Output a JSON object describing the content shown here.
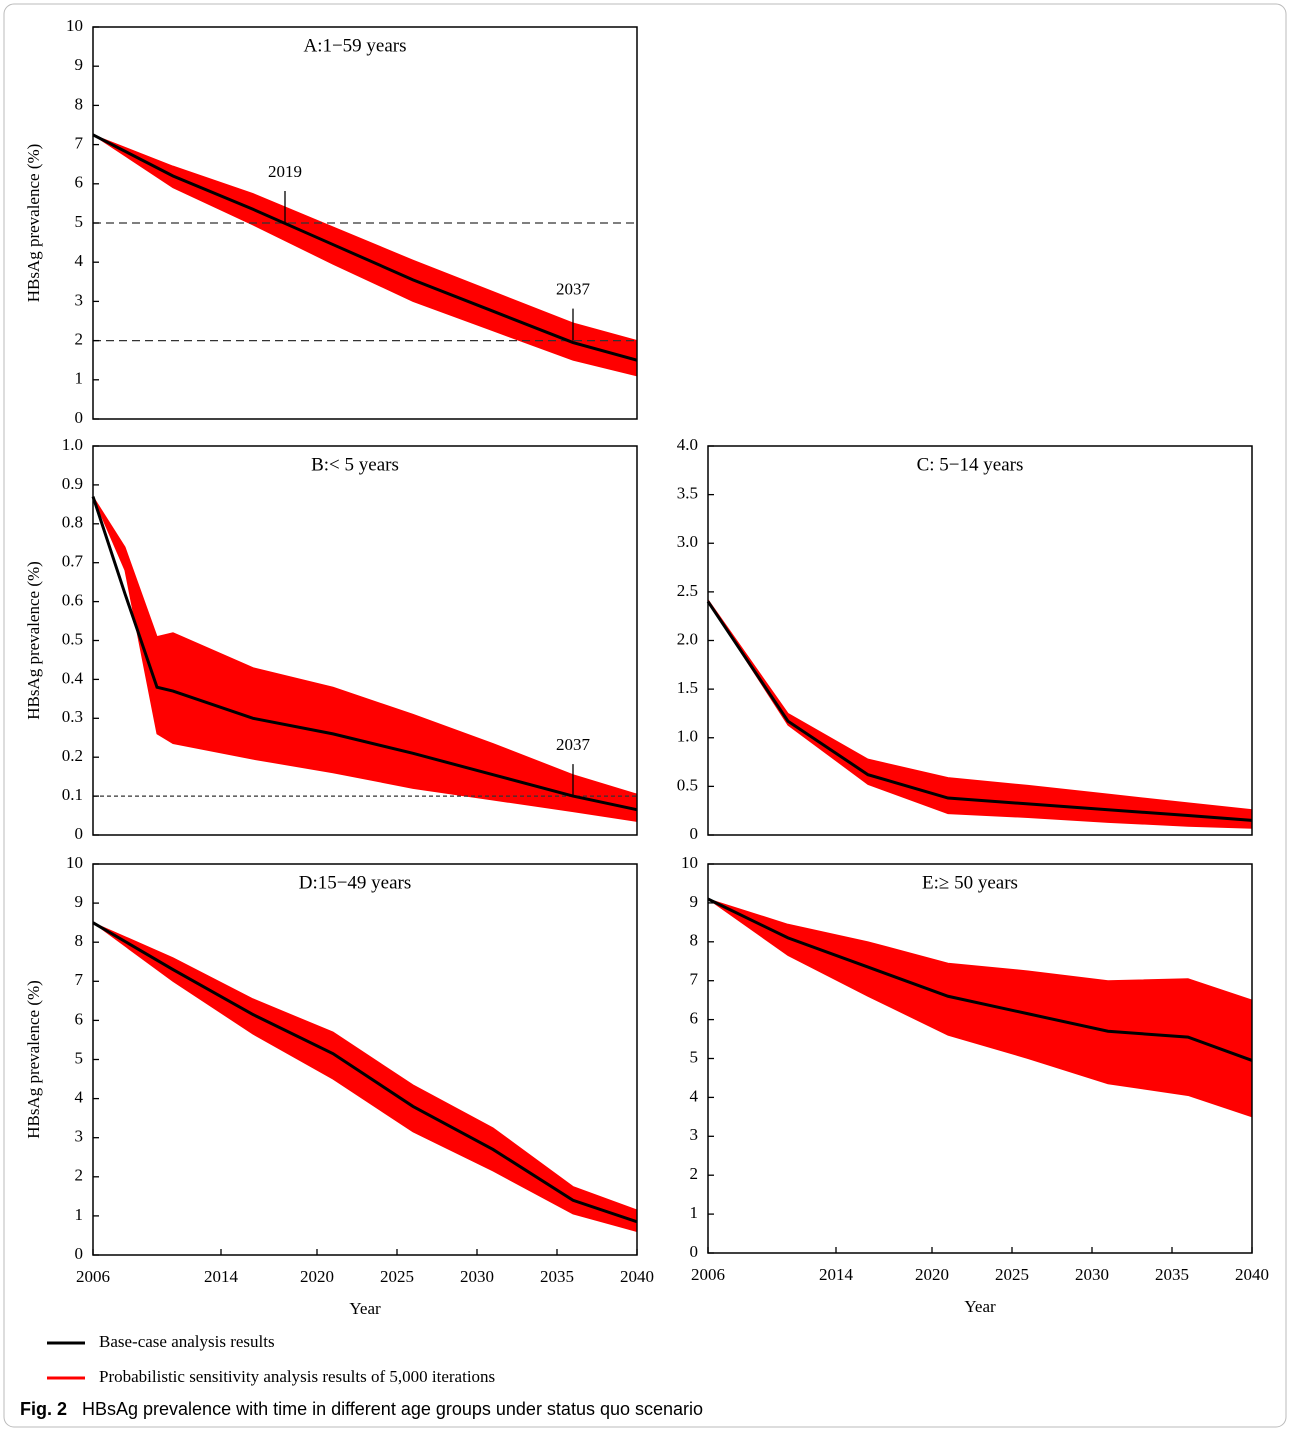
{
  "chart_data": [
    {
      "type": "line",
      "title": "A:1−59 years",
      "ylabel": "HBsAg prevalence (%)",
      "x": [
        2006,
        2011,
        2016,
        2021,
        2026,
        2031,
        2036,
        2040
      ],
      "xlim": [
        2006,
        2040
      ],
      "ylim": [
        0,
        10
      ],
      "yticks": [
        0,
        1,
        2,
        3,
        4,
        5,
        6,
        7,
        8,
        9,
        10
      ],
      "series": [
        {
          "values": [
            7.25,
            6.2,
            5.35,
            4.45,
            3.55,
            2.75,
            1.95,
            1.5
          ]
        }
      ],
      "band": {
        "lower": [
          7.25,
          5.9,
          4.95,
          3.95,
          3.0,
          2.25,
          1.5,
          1.1
        ],
        "upper": [
          7.25,
          6.45,
          5.75,
          4.9,
          4.05,
          3.25,
          2.45,
          2.0
        ]
      },
      "hlines": [
        5,
        2
      ],
      "annotations": [
        {
          "text": "2019",
          "x": 2018,
          "y": 5
        },
        {
          "text": "2037",
          "x": 2036,
          "y": 2
        }
      ]
    },
    {
      "type": "line",
      "title": "B:< 5 years",
      "ylabel": "HBsAg prevalence (%)",
      "x": [
        2006,
        2008,
        2010,
        2011,
        2016,
        2021,
        2026,
        2031,
        2036,
        2040
      ],
      "xlim": [
        2006,
        2040
      ],
      "ylim": [
        0,
        1
      ],
      "yticks": [
        0,
        0.1,
        0.2,
        0.3,
        0.4,
        0.5,
        0.6,
        0.7,
        0.8,
        0.9,
        {
          "value": 1,
          "label": "1.0"
        }
      ],
      "series": [
        {
          "values": [
            0.87,
            0.62,
            0.38,
            0.37,
            0.3,
            0.26,
            0.21,
            0.155,
            0.1,
            0.065
          ]
        }
      ],
      "band": {
        "lower": [
          0.87,
          0.68,
          0.26,
          0.235,
          0.195,
          0.16,
          0.12,
          0.09,
          0.06,
          0.035
        ],
        "upper": [
          0.87,
          0.74,
          0.51,
          0.52,
          0.43,
          0.38,
          0.31,
          0.235,
          0.155,
          0.105
        ]
      },
      "hlines": [
        0.1
      ],
      "annotations": [
        {
          "text": "2037",
          "x": 2036,
          "y": 0.1
        }
      ]
    },
    {
      "type": "line",
      "title": "C: 5−14 years",
      "x": [
        2006,
        2011,
        2016,
        2021,
        2026,
        2031,
        2036,
        2040
      ],
      "xlim": [
        2006,
        2040
      ],
      "ylim": [
        0,
        4
      ],
      "yticks": [
        0,
        0.5,
        {
          "value": 1,
          "label": "1.0"
        },
        1.5,
        {
          "value": 2,
          "label": "2.0"
        },
        2.5,
        {
          "value": 3,
          "label": "3.0"
        },
        3.5,
        {
          "value": 4,
          "label": "4.0"
        }
      ],
      "series": [
        {
          "values": [
            2.4,
            1.17,
            0.62,
            0.38,
            0.32,
            0.26,
            0.2,
            0.15
          ]
        }
      ],
      "band": {
        "lower": [
          2.4,
          1.13,
          0.52,
          0.22,
          0.18,
          0.13,
          0.09,
          0.07
        ],
        "upper": [
          2.42,
          1.25,
          0.78,
          0.59,
          0.51,
          0.42,
          0.33,
          0.26
        ]
      }
    },
    {
      "type": "line",
      "title": "D:15−49 years",
      "ylabel": "HBsAg prevalence (%)",
      "xlabel": "Year",
      "x": [
        2006,
        2011,
        2016,
        2021,
        2026,
        2031,
        2036,
        2040
      ],
      "xlim": [
        2006,
        2040
      ],
      "xticks": [
        2006,
        2014,
        2020,
        2025,
        2030,
        2035,
        2040
      ],
      "ylim": [
        0,
        10
      ],
      "yticks": [
        0,
        1,
        2,
        3,
        4,
        5,
        6,
        7,
        8,
        9,
        10
      ],
      "series": [
        {
          "values": [
            8.5,
            7.3,
            6.15,
            5.15,
            3.8,
            2.7,
            1.4,
            0.85
          ]
        }
      ],
      "band": {
        "lower": [
          8.5,
          7.0,
          5.65,
          4.5,
          3.15,
          2.15,
          1.05,
          0.6
        ],
        "upper": [
          8.5,
          7.6,
          6.55,
          5.7,
          4.35,
          3.25,
          1.75,
          1.15
        ]
      }
    },
    {
      "type": "line",
      "title": "E:≥ 50 years",
      "xlabel": "Year",
      "x": [
        2006,
        2011,
        2016,
        2021,
        2026,
        2031,
        2036,
        2040
      ],
      "xlim": [
        2006,
        2040
      ],
      "xticks": [
        2006,
        2014,
        2020,
        2025,
        2030,
        2035,
        2040
      ],
      "ylim": [
        0,
        10
      ],
      "yticks": [
        0,
        1,
        2,
        3,
        4,
        5,
        6,
        7,
        8,
        9,
        10
      ],
      "series": [
        {
          "values": [
            9.1,
            8.1,
            7.35,
            6.6,
            6.15,
            5.7,
            5.55,
            4.95
          ]
        }
      ],
      "band": {
        "lower": [
          9.1,
          7.65,
          6.6,
          5.6,
          5.0,
          4.35,
          4.05,
          3.5
        ],
        "upper": [
          9.1,
          8.45,
          8.0,
          7.45,
          7.25,
          7.0,
          7.05,
          6.5
        ]
      }
    }
  ],
  "legend": [
    {
      "name": "Base-case analysis results",
      "color": "#000000"
    },
    {
      "name": "Probabilistic sensitivity analysis results of 5,000 iterations",
      "color": "#ff0000"
    }
  ],
  "caption": {
    "label": "Fig. 2",
    "text": "HBsAg prevalence with time in different age groups under status quo scenario"
  }
}
